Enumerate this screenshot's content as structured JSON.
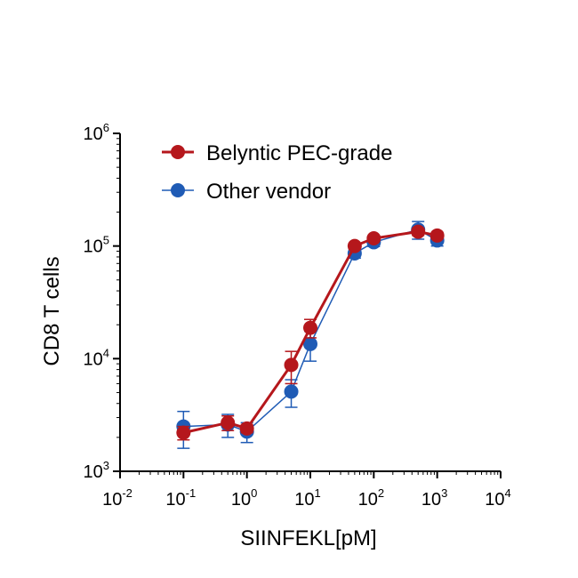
{
  "chart_data": {
    "type": "scatter",
    "title": "",
    "xlabel": "SIINFEKL[pM]",
    "ylabel": "CD8 T cells",
    "x_scale": "log",
    "y_scale": "log",
    "xlim": [
      0.01,
      10000
    ],
    "ylim": [
      1000,
      1000000
    ],
    "x_ticks": [
      {
        "base": "10",
        "exp": "-2",
        "value": 0.01
      },
      {
        "base": "10",
        "exp": "-1",
        "value": 0.1
      },
      {
        "base": "10",
        "exp": "0",
        "value": 1
      },
      {
        "base": "10",
        "exp": "1",
        "value": 10
      },
      {
        "base": "10",
        "exp": "2",
        "value": 100
      },
      {
        "base": "10",
        "exp": "3",
        "value": 1000
      },
      {
        "base": "10",
        "exp": "4",
        "value": 10000
      }
    ],
    "y_ticks": [
      {
        "base": "10",
        "exp": "3",
        "value": 1000
      },
      {
        "base": "10",
        "exp": "4",
        "value": 10000
      },
      {
        "base": "10",
        "exp": "5",
        "value": 100000
      },
      {
        "base": "10",
        "exp": "6",
        "value": 1000000
      }
    ],
    "grid": false,
    "legend_position": "top-left",
    "series": [
      {
        "name": "Other vendor",
        "color": "#1f5bb5",
        "x": [
          0.1,
          0.5,
          1,
          5,
          10,
          50,
          100,
          500,
          1000
        ],
        "y": [
          2500,
          2600,
          2250,
          5100,
          13500,
          86000,
          108000,
          140000,
          112000
        ],
        "err": [
          900,
          600,
          450,
          1400,
          4000,
          8000,
          9000,
          25000,
          12000
        ]
      },
      {
        "name": "Belyntic PEC-grade",
        "color": "#b5171c",
        "x": [
          0.1,
          0.5,
          1,
          5,
          10,
          50,
          100,
          500,
          1000
        ],
        "y": [
          2200,
          2700,
          2400,
          8800,
          18800,
          100000,
          117000,
          134000,
          124000
        ],
        "err": [
          300,
          400,
          200,
          2800,
          3500,
          6000,
          6000,
          10000,
          8000
        ]
      }
    ]
  }
}
